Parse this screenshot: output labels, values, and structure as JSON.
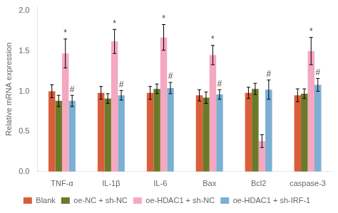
{
  "chart_data": {
    "type": "bar",
    "categories": [
      "TNF-α",
      "IL-1β",
      "IL-6",
      "Bax",
      "Bcl2",
      "caspase-3"
    ],
    "series": [
      {
        "name": "Blank",
        "color": "#d95f3b",
        "values": [
          1.0,
          0.98,
          0.98,
          0.95,
          0.98,
          0.95
        ],
        "errors": [
          0.08,
          0.08,
          0.08,
          0.07,
          0.07,
          0.08
        ]
      },
      {
        "name": "oe-NC + sh-NC",
        "color": "#6b7a2a",
        "values": [
          0.88,
          0.91,
          1.03,
          0.92,
          1.03,
          0.97
        ],
        "errors": [
          0.07,
          0.06,
          0.06,
          0.07,
          0.07,
          0.06
        ]
      },
      {
        "name": "oe-HDAC1 + sh-NC",
        "color": "#f5a8c0",
        "values": [
          1.47,
          1.62,
          1.67,
          1.45,
          0.38,
          1.5
        ],
        "errors": [
          0.18,
          0.15,
          0.16,
          0.12,
          0.08,
          0.17
        ]
      },
      {
        "name": "oe-HDAC1 + sh-IRF-1",
        "color": "#7bafd4",
        "values": [
          0.88,
          0.95,
          1.04,
          0.96,
          1.02,
          1.08
        ],
        "errors": [
          0.07,
          0.06,
          0.07,
          0.06,
          0.12,
          0.08
        ]
      }
    ],
    "annotations": [
      {
        "text": "*",
        "series": "oe-HDAC1 + sh-NC",
        "categories": [
          "TNF-α",
          "IL-1β",
          "IL-6",
          "Bax",
          "caspase-3"
        ]
      },
      {
        "text": "#",
        "series": "oe-HDAC1 + sh-IRF-1",
        "categories": [
          "TNF-α",
          "IL-1β",
          "IL-6",
          "Bax",
          "Bcl2",
          "caspase-3"
        ]
      }
    ],
    "ylabel": "Relative mRNA expression",
    "ylim": [
      0.0,
      2.05
    ],
    "yticks": [
      {
        "value": 0,
        "label": "0.0"
      },
      0.5,
      {
        "value": 1,
        "label": "1.0"
      },
      1.5,
      {
        "value": 2,
        "label": "2.0"
      }
    ],
    "grid": false,
    "legend": "bottom"
  }
}
